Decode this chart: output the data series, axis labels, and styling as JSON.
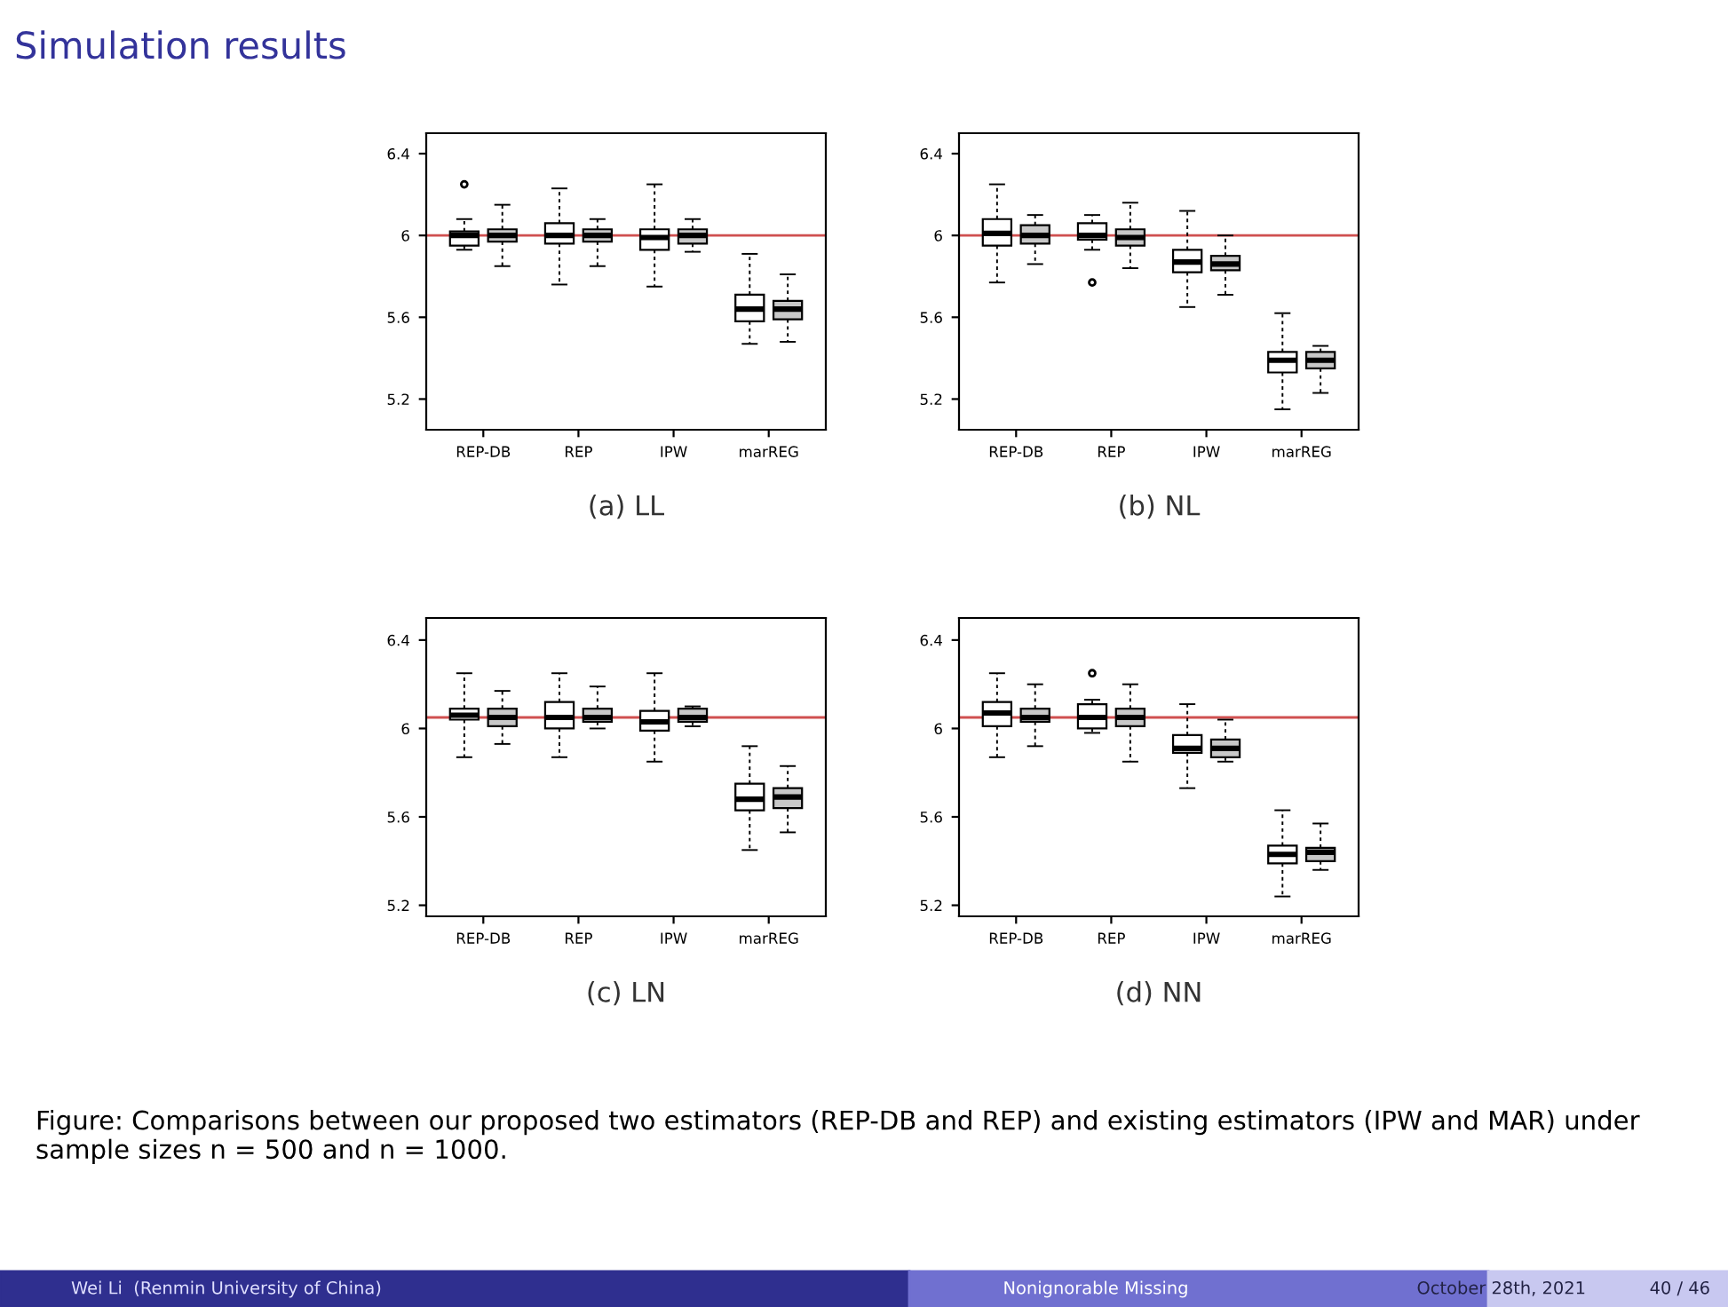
{
  "chart_data": [
    {
      "type": "box",
      "title": "Simulation results",
      "xlabel": "(a) LL",
      "categories": [
        "REP-DB",
        "REP",
        "IPW",
        "marREG"
      ],
      "ylim": [
        5.05,
        6.5
      ],
      "yticks": [
        5.2,
        5.6,
        6,
        6.4
      ],
      "ref_lines": [
        {
          "axis": "y",
          "value": 6,
          "color": "#d05050"
        }
      ],
      "series": [
        {
          "color": "#ffffff",
          "boxes": [
            {
              "low": 5.93,
              "q1": 5.95,
              "median": 6.0,
              "q3": 6.02,
              "high": 6.08,
              "outliers": [
                6.25
              ]
            },
            {
              "low": 5.76,
              "q1": 5.96,
              "median": 6.0,
              "q3": 6.06,
              "high": 6.23
            },
            {
              "low": 5.75,
              "q1": 5.93,
              "median": 5.99,
              "q3": 6.03,
              "high": 6.25
            },
            {
              "low": 5.47,
              "q1": 5.58,
              "median": 5.64,
              "q3": 5.71,
              "high": 5.91
            }
          ]
        },
        {
          "color": "#c8c8c8",
          "boxes": [
            {
              "low": 5.85,
              "q1": 5.97,
              "median": 6.0,
              "q3": 6.03,
              "high": 6.15
            },
            {
              "low": 5.85,
              "q1": 5.97,
              "median": 6.0,
              "q3": 6.03,
              "high": 6.08
            },
            {
              "low": 5.92,
              "q1": 5.96,
              "median": 6.0,
              "q3": 6.03,
              "high": 6.08
            },
            {
              "low": 5.48,
              "q1": 5.59,
              "median": 5.64,
              "q3": 5.68,
              "high": 5.81
            }
          ]
        }
      ]
    },
    {
      "type": "box",
      "xlabel": "(b) NL",
      "categories": [
        "REP-DB",
        "REP",
        "IPW",
        "marREG"
      ],
      "ylim": [
        5.05,
        6.5
      ],
      "yticks": [
        5.2,
        5.6,
        6,
        6.4
      ],
      "ref_lines": [
        {
          "axis": "y",
          "value": 6,
          "color": "#d05050"
        }
      ],
      "series": [
        {
          "color": "#ffffff",
          "boxes": [
            {
              "low": 5.77,
              "q1": 5.95,
              "median": 6.01,
              "q3": 6.08,
              "high": 6.25
            },
            {
              "low": 5.93,
              "q1": 5.98,
              "median": 6.0,
              "q3": 6.06,
              "high": 6.1,
              "outliers": [
                5.77
              ]
            },
            {
              "low": 5.65,
              "q1": 5.82,
              "median": 5.87,
              "q3": 5.93,
              "high": 6.12
            },
            {
              "low": 5.15,
              "q1": 5.33,
              "median": 5.39,
              "q3": 5.43,
              "high": 5.62
            }
          ]
        },
        {
          "color": "#c8c8c8",
          "boxes": [
            {
              "low": 5.86,
              "q1": 5.96,
              "median": 6.0,
              "q3": 6.05,
              "high": 6.1
            },
            {
              "low": 5.84,
              "q1": 5.95,
              "median": 5.99,
              "q3": 6.03,
              "high": 6.16
            },
            {
              "low": 5.71,
              "q1": 5.83,
              "median": 5.86,
              "q3": 5.9,
              "high": 6.0
            },
            {
              "low": 5.23,
              "q1": 5.35,
              "median": 5.39,
              "q3": 5.43,
              "high": 5.46
            }
          ]
        }
      ]
    },
    {
      "type": "box",
      "xlabel": "(c) LN",
      "categories": [
        "REP-DB",
        "REP",
        "IPW",
        "marREG"
      ],
      "ylim": [
        5.15,
        6.5
      ],
      "yticks": [
        5.2,
        5.6,
        6,
        6.4
      ],
      "ref_lines": [
        {
          "axis": "y",
          "value": 6.05,
          "color": "#d05050"
        }
      ],
      "series": [
        {
          "color": "#ffffff",
          "boxes": [
            {
              "low": 5.87,
              "q1": 6.04,
              "median": 6.06,
              "q3": 6.09,
              "high": 6.25
            },
            {
              "low": 5.87,
              "q1": 6.0,
              "median": 6.05,
              "q3": 6.12,
              "high": 6.25
            },
            {
              "low": 5.85,
              "q1": 5.99,
              "median": 6.03,
              "q3": 6.08,
              "high": 6.25
            },
            {
              "low": 5.45,
              "q1": 5.63,
              "median": 5.68,
              "q3": 5.75,
              "high": 5.92
            }
          ]
        },
        {
          "color": "#c8c8c8",
          "boxes": [
            {
              "low": 5.93,
              "q1": 6.01,
              "median": 6.05,
              "q3": 6.09,
              "high": 6.17
            },
            {
              "low": 6.0,
              "q1": 6.03,
              "median": 6.05,
              "q3": 6.09,
              "high": 6.19
            },
            {
              "low": 6.01,
              "q1": 6.03,
              "median": 6.05,
              "q3": 6.09,
              "high": 6.1
            },
            {
              "low": 5.53,
              "q1": 5.64,
              "median": 5.69,
              "q3": 5.73,
              "high": 5.83
            }
          ]
        }
      ]
    },
    {
      "type": "box",
      "xlabel": "(d) NN",
      "categories": [
        "REP-DB",
        "REP",
        "IPW",
        "marREG"
      ],
      "ylim": [
        5.15,
        6.5
      ],
      "yticks": [
        5.2,
        5.6,
        6,
        6.4
      ],
      "ref_lines": [
        {
          "axis": "y",
          "value": 6.05,
          "color": "#d05050"
        }
      ],
      "series": [
        {
          "color": "#ffffff",
          "boxes": [
            {
              "low": 5.87,
              "q1": 6.01,
              "median": 6.07,
              "q3": 6.12,
              "high": 6.25
            },
            {
              "low": 5.98,
              "q1": 6.0,
              "median": 6.05,
              "q3": 6.11,
              "high": 6.13,
              "outliers": [
                6.25
              ]
            },
            {
              "low": 5.73,
              "q1": 5.89,
              "median": 5.91,
              "q3": 5.97,
              "high": 6.11
            },
            {
              "low": 5.24,
              "q1": 5.39,
              "median": 5.43,
              "q3": 5.47,
              "high": 5.63
            }
          ]
        },
        {
          "color": "#c8c8c8",
          "boxes": [
            {
              "low": 5.92,
              "q1": 6.03,
              "median": 6.05,
              "q3": 6.09,
              "high": 6.2
            },
            {
              "low": 5.85,
              "q1": 6.01,
              "median": 6.05,
              "q3": 6.09,
              "high": 6.2
            },
            {
              "low": 5.85,
              "q1": 5.87,
              "median": 5.91,
              "q3": 5.95,
              "high": 6.04
            },
            {
              "low": 5.36,
              "q1": 5.4,
              "median": 5.44,
              "q3": 5.46,
              "high": 5.57
            }
          ]
        }
      ],
      "annotations": [
        "Figure: Comparisons between our proposed two estimators (REP-DB and REP) and existing estimators (IPW and MAR) under sample sizes n = 500 and n = 1000.",
        "Wei Li  (Renmin University of China)",
        "Nonignorable Missing",
        "October 28th, 2021",
        "40 / 46"
      ]
    }
  ]
}
